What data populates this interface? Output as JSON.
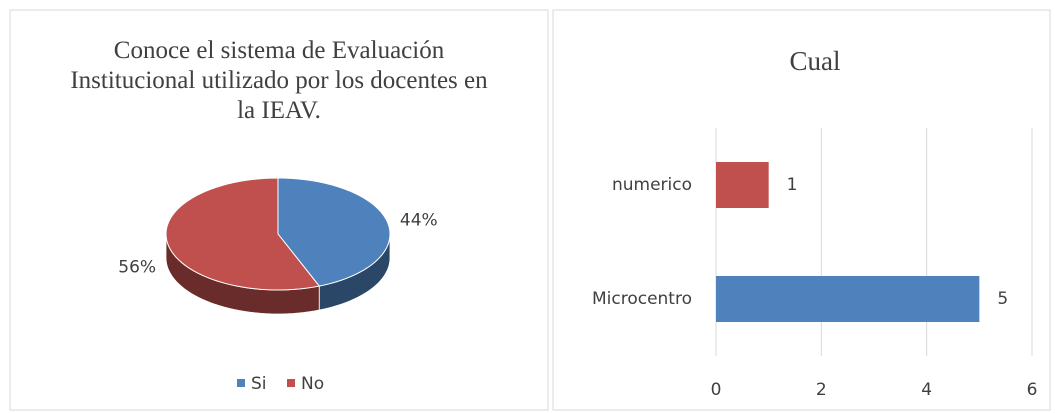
{
  "chart_data": [
    {
      "type": "pie3d",
      "title": "Conoce  el sistema  de Evaluación Institucional utilizado  por los docentes    en la IEAV.",
      "categories": [
        "Si",
        "No"
      ],
      "values": [
        44,
        56
      ],
      "value_labels": [
        "44%",
        "56%"
      ],
      "colors": [
        "#4f81bd",
        "#c0504d"
      ],
      "legend": "bottom"
    },
    {
      "type": "barh",
      "title": "Cual",
      "categories": [
        "Microcentro",
        "numerico"
      ],
      "values": [
        5,
        1
      ],
      "colors": [
        "#4f81bd",
        "#c0504d"
      ],
      "xlim": [
        0,
        6
      ],
      "xticks": [
        0,
        2,
        4,
        6
      ],
      "grid": true
    }
  ]
}
